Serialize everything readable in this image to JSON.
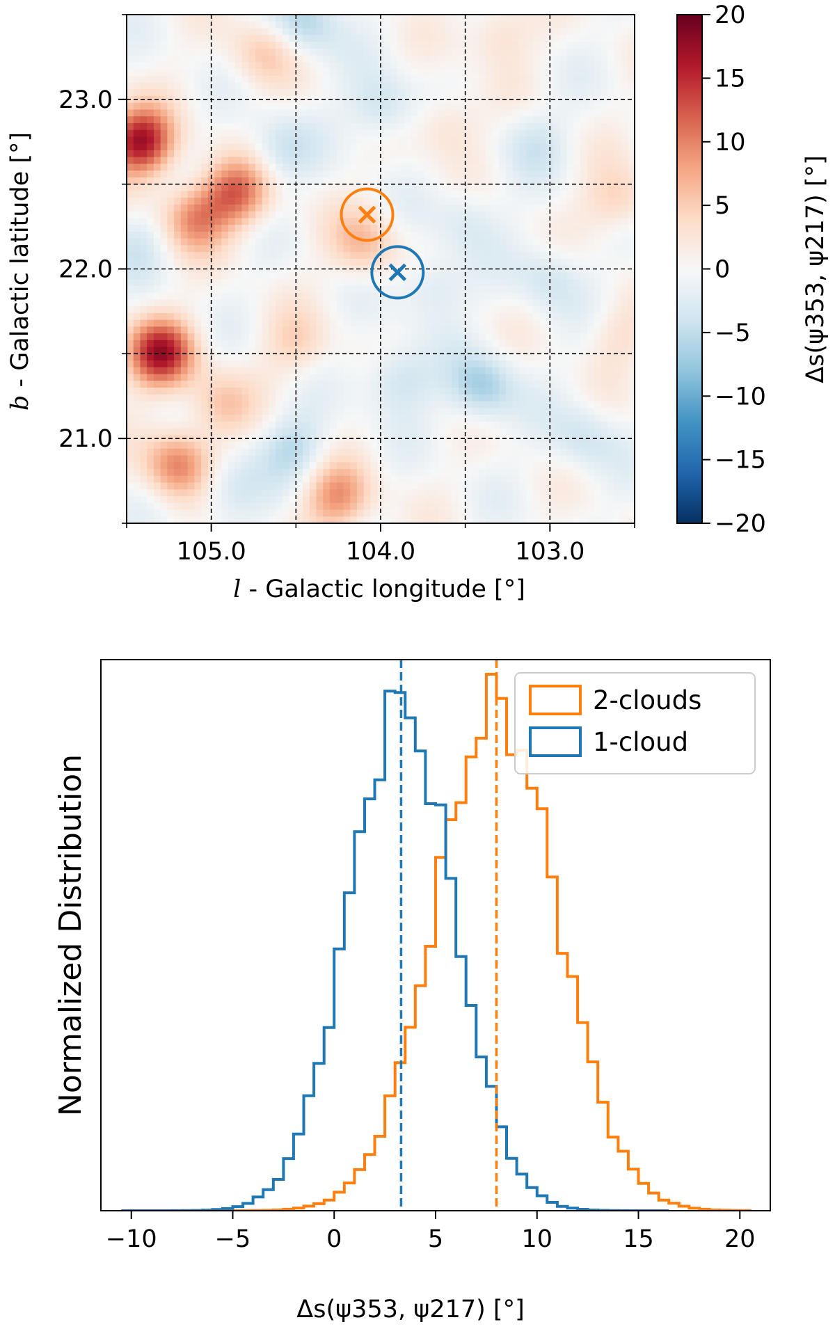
{
  "chart_data": [
    {
      "type": "heatmap",
      "title": "",
      "xlabel_var": "l",
      "xlabel_text": " - Galactic longitude [°]",
      "ylabel_var": "b",
      "ylabel_text": " - Galactic latitude [°]",
      "xlim": [
        105.5,
        102.5
      ],
      "ylim": [
        20.5,
        23.5
      ],
      "xticks": [
        105.0,
        104.0,
        103.0
      ],
      "xtick_labels": [
        "105.0",
        "104.0",
        "103.0"
      ],
      "yticks": [
        23.0,
        22.0,
        21.0
      ],
      "ytick_labels": [
        "23.0",
        "22.0",
        "21.0"
      ],
      "grid_x": [
        105.0,
        104.5,
        104.0,
        103.5,
        103.0
      ],
      "grid_y": [
        23.0,
        22.5,
        22.0,
        21.5,
        21.0
      ],
      "colormap": "RdBu_r",
      "colorbar": {
        "label": "Δs(ψ353, ψ217) [°]",
        "min": -20,
        "max": 20,
        "ticks": [
          20,
          15,
          10,
          5,
          0,
          -5,
          -10,
          -15,
          -20
        ],
        "tick_labels": [
          "20",
          "15",
          "10",
          "5",
          "0",
          "−5",
          "−10",
          "−15",
          "−20"
        ]
      },
      "markers": [
        {
          "name": "2-clouds",
          "l": 104.08,
          "b": 22.32,
          "color": "#ff7f0e",
          "symbol": "x-in-circle"
        },
        {
          "name": "1-cloud",
          "l": 103.9,
          "b": 21.98,
          "color": "#1f77b4",
          "symbol": "x-in-circle"
        }
      ],
      "blobs": [
        {
          "l": 105.42,
          "b": 22.75,
          "v": 17
        },
        {
          "l": 105.3,
          "b": 21.5,
          "v": 16
        },
        {
          "l": 104.85,
          "b": 22.45,
          "v": 11
        },
        {
          "l": 105.1,
          "b": 22.3,
          "v": 9
        },
        {
          "l": 105.2,
          "b": 20.85,
          "v": 10
        },
        {
          "l": 104.25,
          "b": 20.65,
          "v": 9
        },
        {
          "l": 104.7,
          "b": 23.28,
          "v": 5
        },
        {
          "l": 104.1,
          "b": 22.15,
          "v": 6
        },
        {
          "l": 104.95,
          "b": 21.2,
          "v": 5
        },
        {
          "l": 103.6,
          "b": 22.85,
          "v": 4
        },
        {
          "l": 102.6,
          "b": 22.4,
          "v": 5
        },
        {
          "l": 103.3,
          "b": 23.4,
          "v": 4
        },
        {
          "l": 102.6,
          "b": 21.6,
          "v": 3
        },
        {
          "l": 104.5,
          "b": 21.55,
          "v": 4
        },
        {
          "l": 103.9,
          "b": 21.35,
          "v": -5
        },
        {
          "l": 103.4,
          "b": 21.3,
          "v": -7
        },
        {
          "l": 104.5,
          "b": 20.95,
          "v": -5
        },
        {
          "l": 104.0,
          "b": 22.95,
          "v": -5
        },
        {
          "l": 104.45,
          "b": 23.45,
          "v": -6
        },
        {
          "l": 103.7,
          "b": 21.9,
          "v": -4
        },
        {
          "l": 103.1,
          "b": 22.75,
          "v": -3
        },
        {
          "l": 102.8,
          "b": 21.0,
          "v": -4
        },
        {
          "l": 104.9,
          "b": 20.7,
          "v": -4
        },
        {
          "l": 103.0,
          "b": 21.95,
          "v": -4
        },
        {
          "l": 105.45,
          "b": 22.15,
          "v": -3
        },
        {
          "l": 103.5,
          "b": 22.3,
          "v": -3
        },
        {
          "l": 104.6,
          "b": 22.7,
          "v": -4
        }
      ]
    },
    {
      "type": "histogram",
      "title": "",
      "xlabel": "Δs(ψ353, ψ217) [°]",
      "ylabel": "Normalized Distribution",
      "xlim": [
        -11.5,
        21.5
      ],
      "xticks": [
        -10,
        -5,
        0,
        5,
        10,
        15,
        20
      ],
      "xtick_labels": [
        "−10",
        "−5",
        "0",
        "5",
        "10",
        "15",
        "20"
      ],
      "ylim": [
        0,
        1.095
      ],
      "series": [
        {
          "name": "2-clouds",
          "color": "#ff7f0e",
          "mean": 8.0,
          "sigma": 3.0,
          "peak_x": 8.5,
          "x_range": [
            -5.5,
            20
          ]
        },
        {
          "name": "1-cloud",
          "color": "#1f77b4",
          "mean": 3.3,
          "sigma": 2.6,
          "peak_x": 3.5,
          "x_range": [
            -10,
            16
          ]
        }
      ],
      "vlines": [
        {
          "x": 3.3,
          "color": "#1f77b4",
          "style": "dashed"
        },
        {
          "x": 8.0,
          "color": "#ff7f0e",
          "style": "dashed"
        }
      ],
      "legend_position": "top-right"
    }
  ]
}
